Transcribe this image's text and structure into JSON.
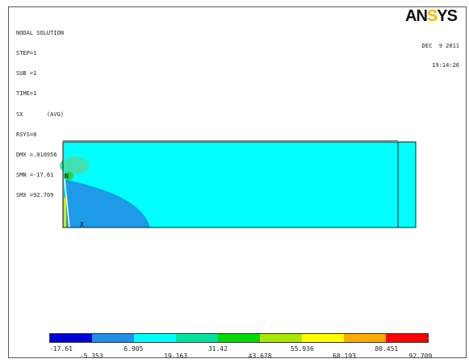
{
  "header": {
    "title": "NODAL SOLUTION",
    "lines": [
      "STEP=1",
      "SUB =1",
      "TIME=1",
      "SX       (AVG)",
      "RSYS=0",
      "DMX =.010956",
      "SMN =-17.61",
      "SMX =92.709"
    ]
  },
  "brand": {
    "logo_main": "AN",
    "logo_accent": "S",
    "logo_end": "YS"
  },
  "datetime": {
    "date": "DEC  9 2011",
    "time": "19:14:26"
  },
  "model": {
    "min_marker": "N",
    "max_marker": "X"
  },
  "legend": {
    "colors": [
      "#0000d8",
      "#1e8ee6",
      "#00ffff",
      "#00e0a0",
      "#00d800",
      "#a8e800",
      "#ffff00",
      "#ffaa00",
      "#ff0000"
    ],
    "labels": [
      "-17.61",
      "-5.353",
      "6.905",
      "19.163",
      "31.42",
      "43.678",
      "55.936",
      "68.193",
      "80.451",
      "92.709"
    ]
  },
  "colors": {
    "field": "#00ffff",
    "low_region": "#1e9be8",
    "hot_spot": "#40e070"
  }
}
